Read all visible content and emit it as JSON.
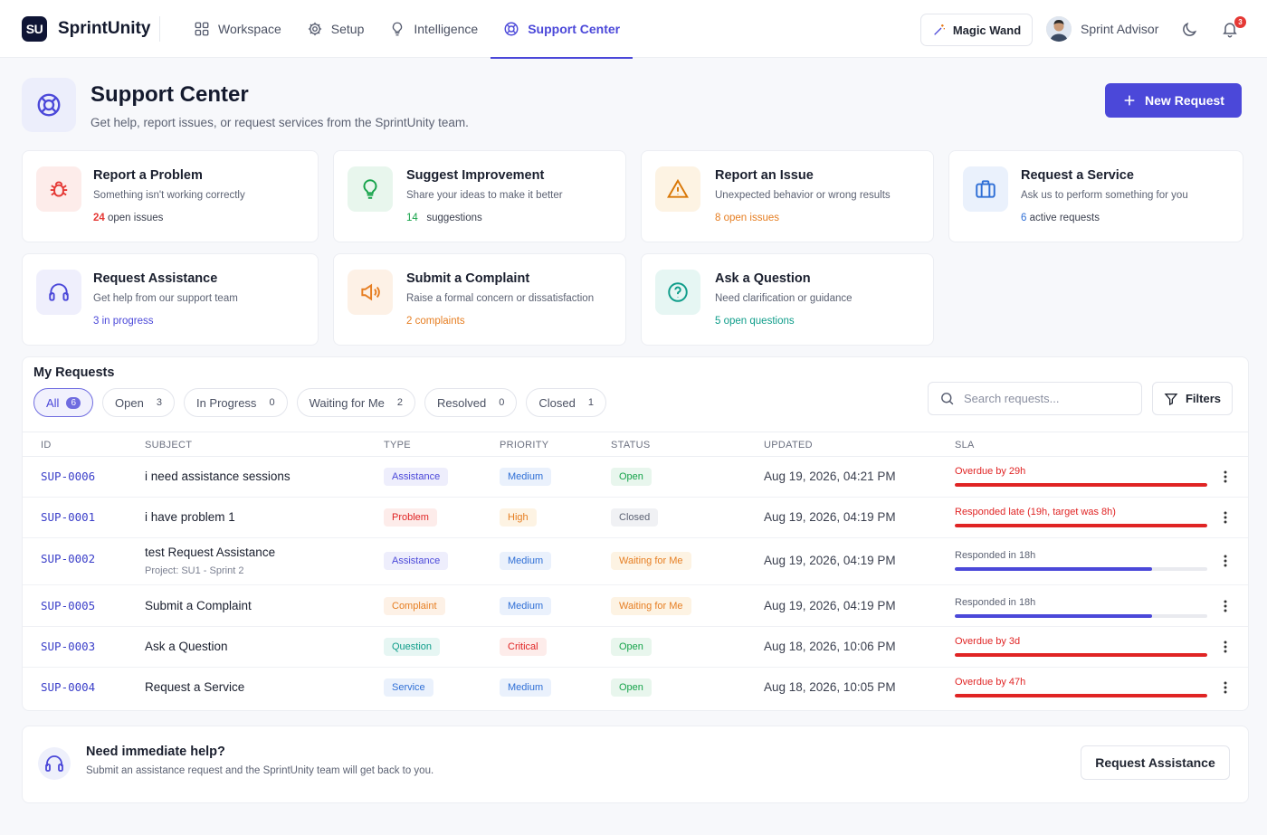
{
  "app": {
    "logo_mark": "SU",
    "name": "SprintUnity"
  },
  "nav": [
    {
      "label": "Workspace",
      "icon": "grid-icon"
    },
    {
      "label": "Setup",
      "icon": "gear-icon"
    },
    {
      "label": "Intelligence",
      "icon": "lightbulb-icon"
    },
    {
      "label": "Support Center",
      "icon": "lifebuoy-icon",
      "active": true
    }
  ],
  "header_actions": {
    "magic_wand": "Magic Wand",
    "user_name": "Sprint Advisor",
    "notifications": "3"
  },
  "page": {
    "title": "Support Center",
    "subtitle": "Get help, report issues, or request services from the SprintUnity team.",
    "new_request": "New Request"
  },
  "categories": [
    {
      "title": "Report a Problem",
      "desc": "Something isn't working correctly",
      "count": "24",
      "stat": "open issues",
      "accent": "#e53935",
      "bg": "#fdecea",
      "icon": "bug-icon"
    },
    {
      "title": "Suggest Improvement",
      "desc": "Share your ideas to make it better",
      "count": "14",
      "stat": "suggestions",
      "accent": "#16a34a",
      "bg": "#e8f6ed",
      "icon": "lightbulb-icon"
    },
    {
      "title": "Report an Issue",
      "desc": "Unexpected behavior or wrong results",
      "count": "8",
      "stat": "open issues",
      "accent": "#d97706",
      "bg": "#fdf3e3",
      "icon": "warning-icon"
    },
    {
      "title": "Request a Service",
      "desc": "Ask us to perform something for you",
      "count": "6",
      "stat": "active requests",
      "accent": "#2f6fd6",
      "bg": "#eaf1fc",
      "icon": "briefcase-icon"
    },
    {
      "title": "Request Assistance",
      "desc": "Get help from our support team",
      "count": "3",
      "stat": "in progress",
      "accent": "#4b48d9",
      "bg": "#efeffc",
      "icon": "headset-icon"
    },
    {
      "title": "Submit a Complaint",
      "desc": "Raise a formal concern or dissatisfaction",
      "count": "2",
      "stat": "complaints",
      "accent": "#e67e22",
      "bg": "#fdf1e6",
      "icon": "megaphone-icon"
    },
    {
      "title": "Ask a Question",
      "desc": "Need clarification or guidance",
      "count": "5",
      "stat": "open questions",
      "accent": "#0f9d8a",
      "bg": "#e6f6f3",
      "icon": "question-icon"
    }
  ],
  "requests": {
    "title": "My Requests",
    "tabs": [
      {
        "label": "All",
        "count": "6",
        "active": true
      },
      {
        "label": "Open",
        "count": "3"
      },
      {
        "label": "In Progress",
        "count": "0"
      },
      {
        "label": "Waiting for Me",
        "count": "2"
      },
      {
        "label": "Resolved",
        "count": "0"
      },
      {
        "label": "Closed",
        "count": "1"
      }
    ],
    "search_placeholder": "Search requests...",
    "filters": "Filters",
    "columns": [
      "ID",
      "SUBJECT",
      "TYPE",
      "PRIORITY",
      "STATUS",
      "UPDATED",
      "SLA"
    ],
    "rows": [
      {
        "id": "SUP-0006",
        "subject": "i need assistance sessions",
        "project": "",
        "type": "Assistance",
        "priority": "Medium",
        "status": "Open",
        "updated": "Aug 19, 2026, 04:21 PM",
        "sla": "Overdue by 29h",
        "sla_level": 1.0,
        "sla_color": "#e02424"
      },
      {
        "id": "SUP-0001",
        "subject": "i have problem 1",
        "project": "",
        "type": "Problem",
        "priority": "High",
        "status": "Closed",
        "updated": "Aug 19, 2026, 04:19 PM",
        "sla": "Responded late (19h, target was 8h)",
        "sla_level": 1.0,
        "sla_color": "#e02424"
      },
      {
        "id": "SUP-0002",
        "subject": "test Request Assistance",
        "project": "Project: SU1 - Sprint 2",
        "type": "Assistance",
        "priority": "Medium",
        "status": "Waiting for Me",
        "updated": "Aug 19, 2026, 04:19 PM",
        "sla": "Responded in 18h",
        "sla_level": 0.78,
        "sla_color": "#4b48d9"
      },
      {
        "id": "SUP-0005",
        "subject": "Submit a Complaint",
        "project": "",
        "type": "Complaint",
        "priority": "Medium",
        "status": "Waiting for Me",
        "updated": "Aug 19, 2026, 04:19 PM",
        "sla": "Responded in 18h",
        "sla_level": 0.78,
        "sla_color": "#4b48d9"
      },
      {
        "id": "SUP-0003",
        "subject": "Ask a Question",
        "project": "",
        "type": "Question",
        "priority": "Critical",
        "status": "Open",
        "updated": "Aug 18, 2026, 10:06 PM",
        "sla": "Overdue by 3d",
        "sla_level": 1.0,
        "sla_color": "#e02424"
      },
      {
        "id": "SUP-0004",
        "subject": "Request a Service",
        "project": "",
        "type": "Service",
        "priority": "Medium",
        "status": "Open",
        "updated": "Aug 18, 2026, 10:05 PM",
        "sla": "Overdue by 47h",
        "sla_level": 1.0,
        "sla_color": "#e02424"
      }
    ]
  },
  "help": {
    "title": "Need immediate help?",
    "subtitle": "Submit an assistance request and the SprintUnity team will get back to you.",
    "button": "Request Assistance"
  },
  "colors": {
    "accent": "#4b48d9",
    "overdue": "#e02424"
  }
}
